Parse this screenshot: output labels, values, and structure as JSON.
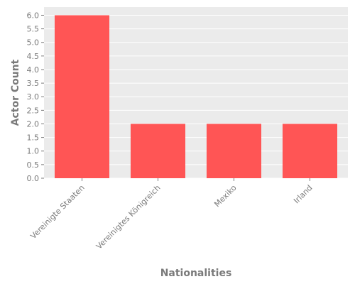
{
  "chart_data": {
    "type": "bar",
    "title": "",
    "xlabel": "Nationalities",
    "ylabel": "Actor Count",
    "categories": [
      "Vereinigte Staaten",
      "Vereinigtes Königreich",
      "Mexiko",
      "Irland"
    ],
    "values": [
      6,
      2,
      2,
      2
    ],
    "ylim": [
      0,
      6.3
    ],
    "yticks": [
      "0.0",
      "0.5",
      "1.0",
      "1.5",
      "2.0",
      "2.5",
      "3.0",
      "3.5",
      "4.0",
      "4.5",
      "5.0",
      "5.5",
      "6.0"
    ],
    "grid": true,
    "legend": "none",
    "colors": {
      "bar": "#ff5555",
      "plot_background": "#ebebeb",
      "gridline": "#ffffff",
      "text": "#7a7a7a"
    }
  }
}
